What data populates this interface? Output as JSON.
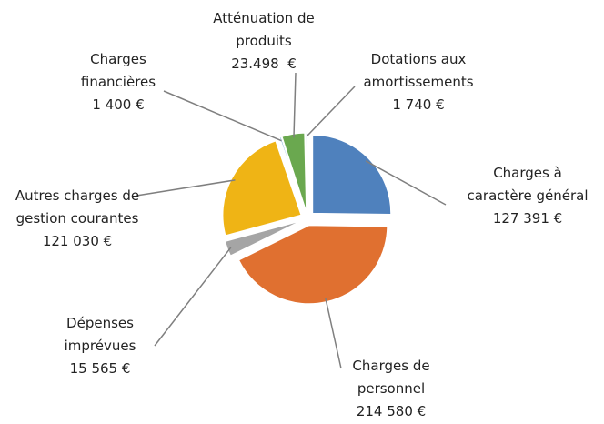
{
  "chart_data": {
    "type": "pie",
    "categories": [
      "Charges à caractère général",
      "Charges de personnel",
      "Dépenses imprévues",
      "Autres charges de gestion courantes",
      "Charges financières",
      "Atténuation de produits",
      "Dotations aux amortissements"
    ],
    "values": [
      127391,
      214580,
      15565,
      121030,
      1400,
      23498,
      1740
    ],
    "value_labels": [
      "127 391 €",
      "214 580 €",
      "15 565 €",
      "121 030 €",
      "1 400 €",
      "23.498  €",
      "1 740 €"
    ],
    "colors": [
      "#4f81bd",
      "#e07030",
      "#a5a5a5",
      "#efb415",
      "#5b9bd5",
      "#6aa84f",
      "#dcecf4"
    ]
  }
}
